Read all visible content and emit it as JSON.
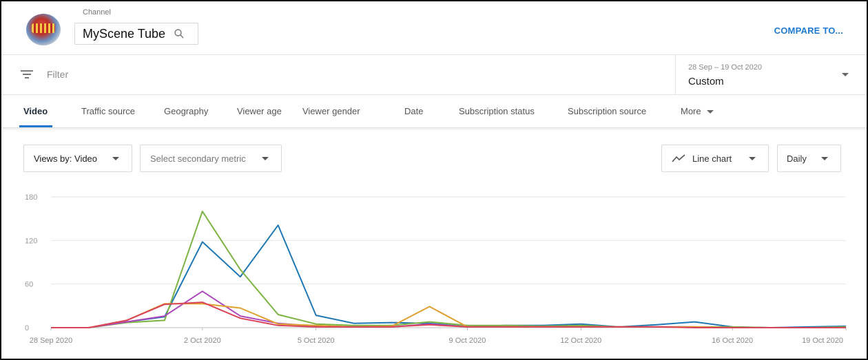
{
  "header": {
    "channel_label": "Channel",
    "channel_name": "MyScene Tube",
    "compare_label": "COMPARE TO...",
    "avatar_icon": "channel-avatar-image"
  },
  "filter": {
    "placeholder": "Filter",
    "date_range": "28 Sep – 19 Oct 2020",
    "date_preset": "Custom"
  },
  "tabs": [
    {
      "label": "Video",
      "active": true
    },
    {
      "label": "Traffic source"
    },
    {
      "label": "Geography"
    },
    {
      "label": "Viewer age"
    },
    {
      "label": "Viewer gender"
    },
    {
      "label": "Date"
    },
    {
      "label": "Subscription status"
    },
    {
      "label": "Subscription source"
    },
    {
      "label": "More"
    }
  ],
  "controls": {
    "primary_metric": "Views by: Video",
    "secondary_metric": "Select secondary metric",
    "chart_type": "Line chart",
    "interval": "Daily"
  },
  "colors": {
    "accent": "#1e7ad1"
  },
  "chart_data": {
    "type": "line",
    "x_tick_labels": [
      "28 Sep 2020",
      "2 Oct 2020",
      "5 Oct 2020",
      "9 Oct 2020",
      "12 Oct 2020",
      "16 Oct 2020",
      "19 Oct 2020"
    ],
    "x_tick_dates": [
      "2020-09-28",
      "2020-10-02",
      "2020-10-05",
      "2020-10-09",
      "2020-10-12",
      "2020-10-16",
      "2020-10-19"
    ],
    "y_ticks": [
      0,
      60,
      120,
      180
    ],
    "ylim": [
      0,
      180
    ],
    "x": [
      "2020-09-28",
      "2020-09-29",
      "2020-09-30",
      "2020-10-01",
      "2020-10-02",
      "2020-10-03",
      "2020-10-04",
      "2020-10-05",
      "2020-10-06",
      "2020-10-07",
      "2020-10-08",
      "2020-10-09",
      "2020-10-10",
      "2020-10-11",
      "2020-10-12",
      "2020-10-13",
      "2020-10-14",
      "2020-10-15",
      "2020-10-16",
      "2020-10-17",
      "2020-10-18",
      "2020-10-19"
    ],
    "series": [
      {
        "color": "#1f77b4",
        "values": [
          0,
          0,
          8,
          15,
          118,
          70,
          141,
          17,
          6,
          7,
          6,
          1,
          3,
          3,
          5,
          1,
          4,
          8,
          1,
          0,
          1,
          2
        ]
      },
      {
        "color": "#7cb342",
        "values": [
          0,
          0,
          7,
          10,
          160,
          80,
          18,
          5,
          3,
          3,
          8,
          3,
          3,
          2,
          3,
          1,
          1,
          1,
          1,
          0,
          0,
          1
        ]
      },
      {
        "color": "#ab47bc",
        "values": [
          0,
          0,
          8,
          16,
          50,
          16,
          6,
          2,
          1,
          1,
          5,
          1,
          1,
          1,
          1,
          1,
          1,
          1,
          0,
          0,
          0,
          0
        ]
      },
      {
        "color": "#e0a030",
        "values": [
          0,
          0,
          10,
          33,
          33,
          27,
          5,
          3,
          1,
          2,
          29,
          1,
          1,
          1,
          1,
          1,
          1,
          1,
          0,
          0,
          0,
          0
        ]
      },
      {
        "color": "#d9445a",
        "values": [
          0,
          0,
          10,
          32,
          35,
          13,
          3,
          1,
          1,
          1,
          4,
          1,
          1,
          1,
          1,
          1,
          1,
          0,
          0,
          0,
          0,
          0
        ]
      }
    ]
  }
}
